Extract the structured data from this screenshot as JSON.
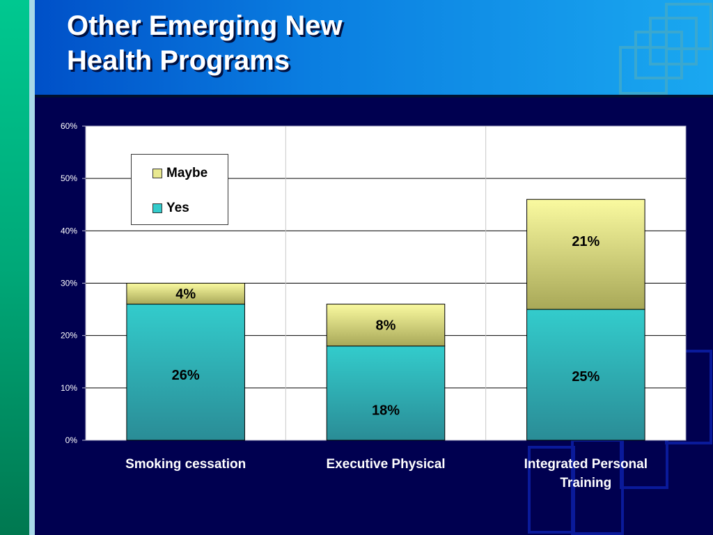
{
  "slide": {
    "title_lines": [
      "Other Emerging New",
      "Health Programs"
    ]
  },
  "colors": {
    "yes": "#33cccc",
    "maybe": "#f5f59a",
    "background": "#000050",
    "header": "#0a7de0"
  },
  "chart_data": {
    "type": "bar",
    "stacked": true,
    "categories": [
      "Smoking cessation",
      "Executive Physical",
      "Integrated Personal Training"
    ],
    "series": [
      {
        "name": "Yes",
        "values": [
          26,
          18,
          25
        ],
        "labels": [
          "26%",
          "18%",
          "25%"
        ]
      },
      {
        "name": "Maybe",
        "values": [
          4,
          8,
          21
        ],
        "labels": [
          "4%",
          "8%",
          "21%"
        ]
      }
    ],
    "ylim": [
      0,
      60
    ],
    "yticks": [
      0,
      10,
      20,
      30,
      40,
      50,
      60
    ],
    "ytick_labels": [
      "0%",
      "10%",
      "20%",
      "30%",
      "40%",
      "50%",
      "60%"
    ],
    "grid": true,
    "legend": "top-left"
  }
}
